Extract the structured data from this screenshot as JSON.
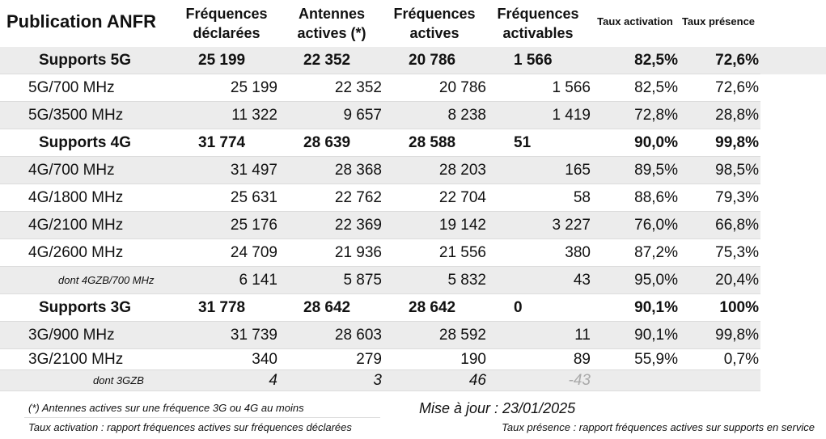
{
  "header": {
    "title": "Publication ANFR",
    "columns": [
      [
        "Fréquences",
        "déclarées"
      ],
      [
        "Antennes",
        "actives (*)"
      ],
      [
        "Fréquences",
        "actives"
      ],
      [
        "Fréquences",
        "activables"
      ],
      [
        "Taux activation"
      ],
      [
        "Taux présence"
      ]
    ]
  },
  "table": {
    "sections": [
      {
        "summary": {
          "label": "Supports 5G",
          "cells": [
            "25 199",
            "22 352",
            "20 786",
            "1 566",
            "82,5%",
            "72,6%"
          ]
        },
        "rows": [
          {
            "label": "5G/700 MHz",
            "cells": [
              "25 199",
              "22 352",
              "20 786",
              "1 566",
              "82,5%",
              "72,6%"
            ]
          },
          {
            "label": "5G/3500 MHz",
            "cells": [
              "11 322",
              "9 657",
              "8 238",
              "1 419",
              "72,8%",
              "28,8%"
            ]
          }
        ]
      },
      {
        "summary": {
          "label": "Supports 4G",
          "cells": [
            "31 774",
            "28 639",
            "28 588",
            "51",
            "90,0%",
            "99,8%"
          ]
        },
        "rows": [
          {
            "label": "4G/700 MHz",
            "cells": [
              "31 497",
              "28 368",
              "28 203",
              "165",
              "89,5%",
              "98,5%"
            ]
          },
          {
            "label": "4G/1800 MHz",
            "cells": [
              "25 631",
              "22 762",
              "22 704",
              "58",
              "88,6%",
              "79,3%"
            ]
          },
          {
            "label": "4G/2100 MHz",
            "cells": [
              "25 176",
              "22 369",
              "19 142",
              "3 227",
              "76,0%",
              "66,8%"
            ]
          },
          {
            "label": "4G/2600 MHz",
            "cells": [
              "24 709",
              "21 936",
              "21 556",
              "380",
              "87,2%",
              "75,3%"
            ]
          }
        ],
        "detail": {
          "label": "dont 4GZB/700 MHz",
          "cells": [
            "6 141",
            "5 875",
            "5 832",
            "43",
            "95,0%",
            "20,4%"
          ]
        }
      },
      {
        "summary": {
          "label": "Supports 3G",
          "cells": [
            "31 778",
            "28 642",
            "28 642",
            "0",
            "90,1%",
            "100%"
          ]
        },
        "rows": [
          {
            "label": "3G/900 MHz",
            "cells": [
              "31 739",
              "28 603",
              "28 592",
              "11",
              "90,1%",
              "99,8%"
            ]
          },
          {
            "label": "3G/2100 MHz",
            "cells": [
              "340",
              "279",
              "190",
              "89",
              "55,9%",
              "0,7%"
            ]
          }
        ],
        "detail": {
          "label": "dont 3GZB",
          "cells": [
            "4",
            "3",
            "46",
            "-43"
          ]
        }
      }
    ]
  },
  "footer": {
    "note": "(*) Antennes actives sur une fréquence 3G ou 4G au moins",
    "update": "Mise à jour : 23/01/2025",
    "activation": "Taux activation : rapport fréquences actives sur fréquences déclarées",
    "presence": "Taux présence : rapport fréquences actives sur supports en service"
  }
}
